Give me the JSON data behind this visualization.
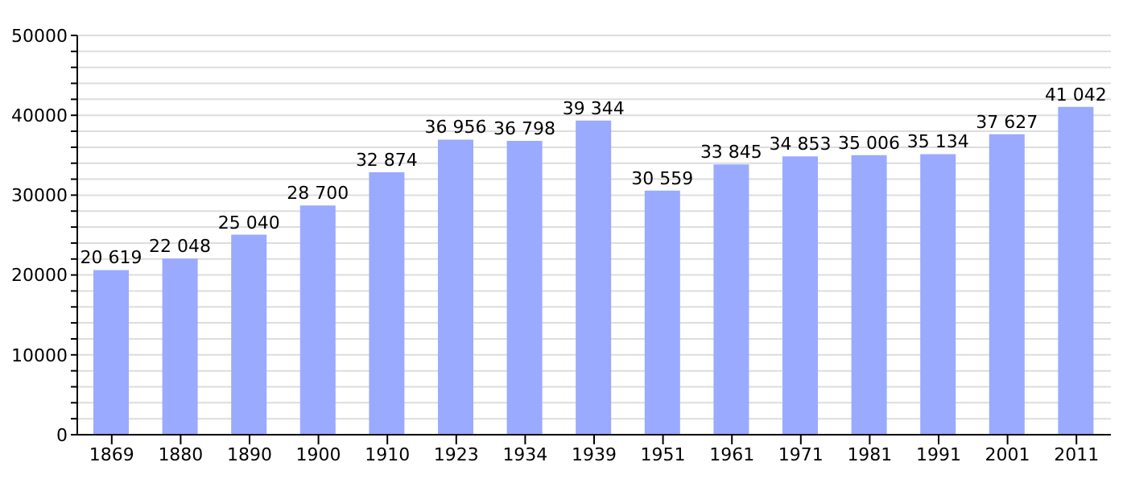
{
  "chart_data": {
    "type": "bar",
    "categories": [
      "1869",
      "1880",
      "1890",
      "1900",
      "1910",
      "1923",
      "1934",
      "1939",
      "1951",
      "1961",
      "1971",
      "1981",
      "1991",
      "2001",
      "2011"
    ],
    "values": [
      20619,
      22048,
      25040,
      28700,
      32874,
      36956,
      36798,
      39344,
      30559,
      33845,
      34853,
      35006,
      35134,
      37627,
      41042
    ],
    "value_labels": [
      "20 619",
      "22 048",
      "25 040",
      "28 700",
      "32 874",
      "36 956",
      "36 798",
      "39 344",
      "30 559",
      "33 845",
      "34 853",
      "35 006",
      "35 134",
      "37 627",
      "41 042"
    ],
    "color": "#99aaff",
    "ylim": [
      0,
      50000
    ],
    "yticks": [
      0,
      {
        "value": 2000,
        "label": null
      },
      {
        "value": 4000,
        "label": null
      },
      {
        "value": 6000,
        "label": null
      },
      {
        "value": 8000,
        "label": null
      },
      10000,
      {
        "value": 12000,
        "label": null
      },
      {
        "value": 14000,
        "label": null
      },
      {
        "value": 16000,
        "label": null
      },
      {
        "value": 18000,
        "label": null
      },
      20000,
      {
        "value": 22000,
        "label": null
      },
      {
        "value": 24000,
        "label": null
      },
      {
        "value": 26000,
        "label": null
      },
      {
        "value": 28000,
        "label": null
      },
      30000,
      {
        "value": 32000,
        "label": null
      },
      {
        "value": 34000,
        "label": null
      },
      {
        "value": 36000,
        "label": null
      },
      {
        "value": 38000,
        "label": null
      },
      40000,
      {
        "value": 42000,
        "label": null
      },
      {
        "value": 44000,
        "label": null
      },
      {
        "value": 46000,
        "label": null
      },
      {
        "value": 48000,
        "label": null
      },
      50000
    ],
    "grid": "y"
  }
}
